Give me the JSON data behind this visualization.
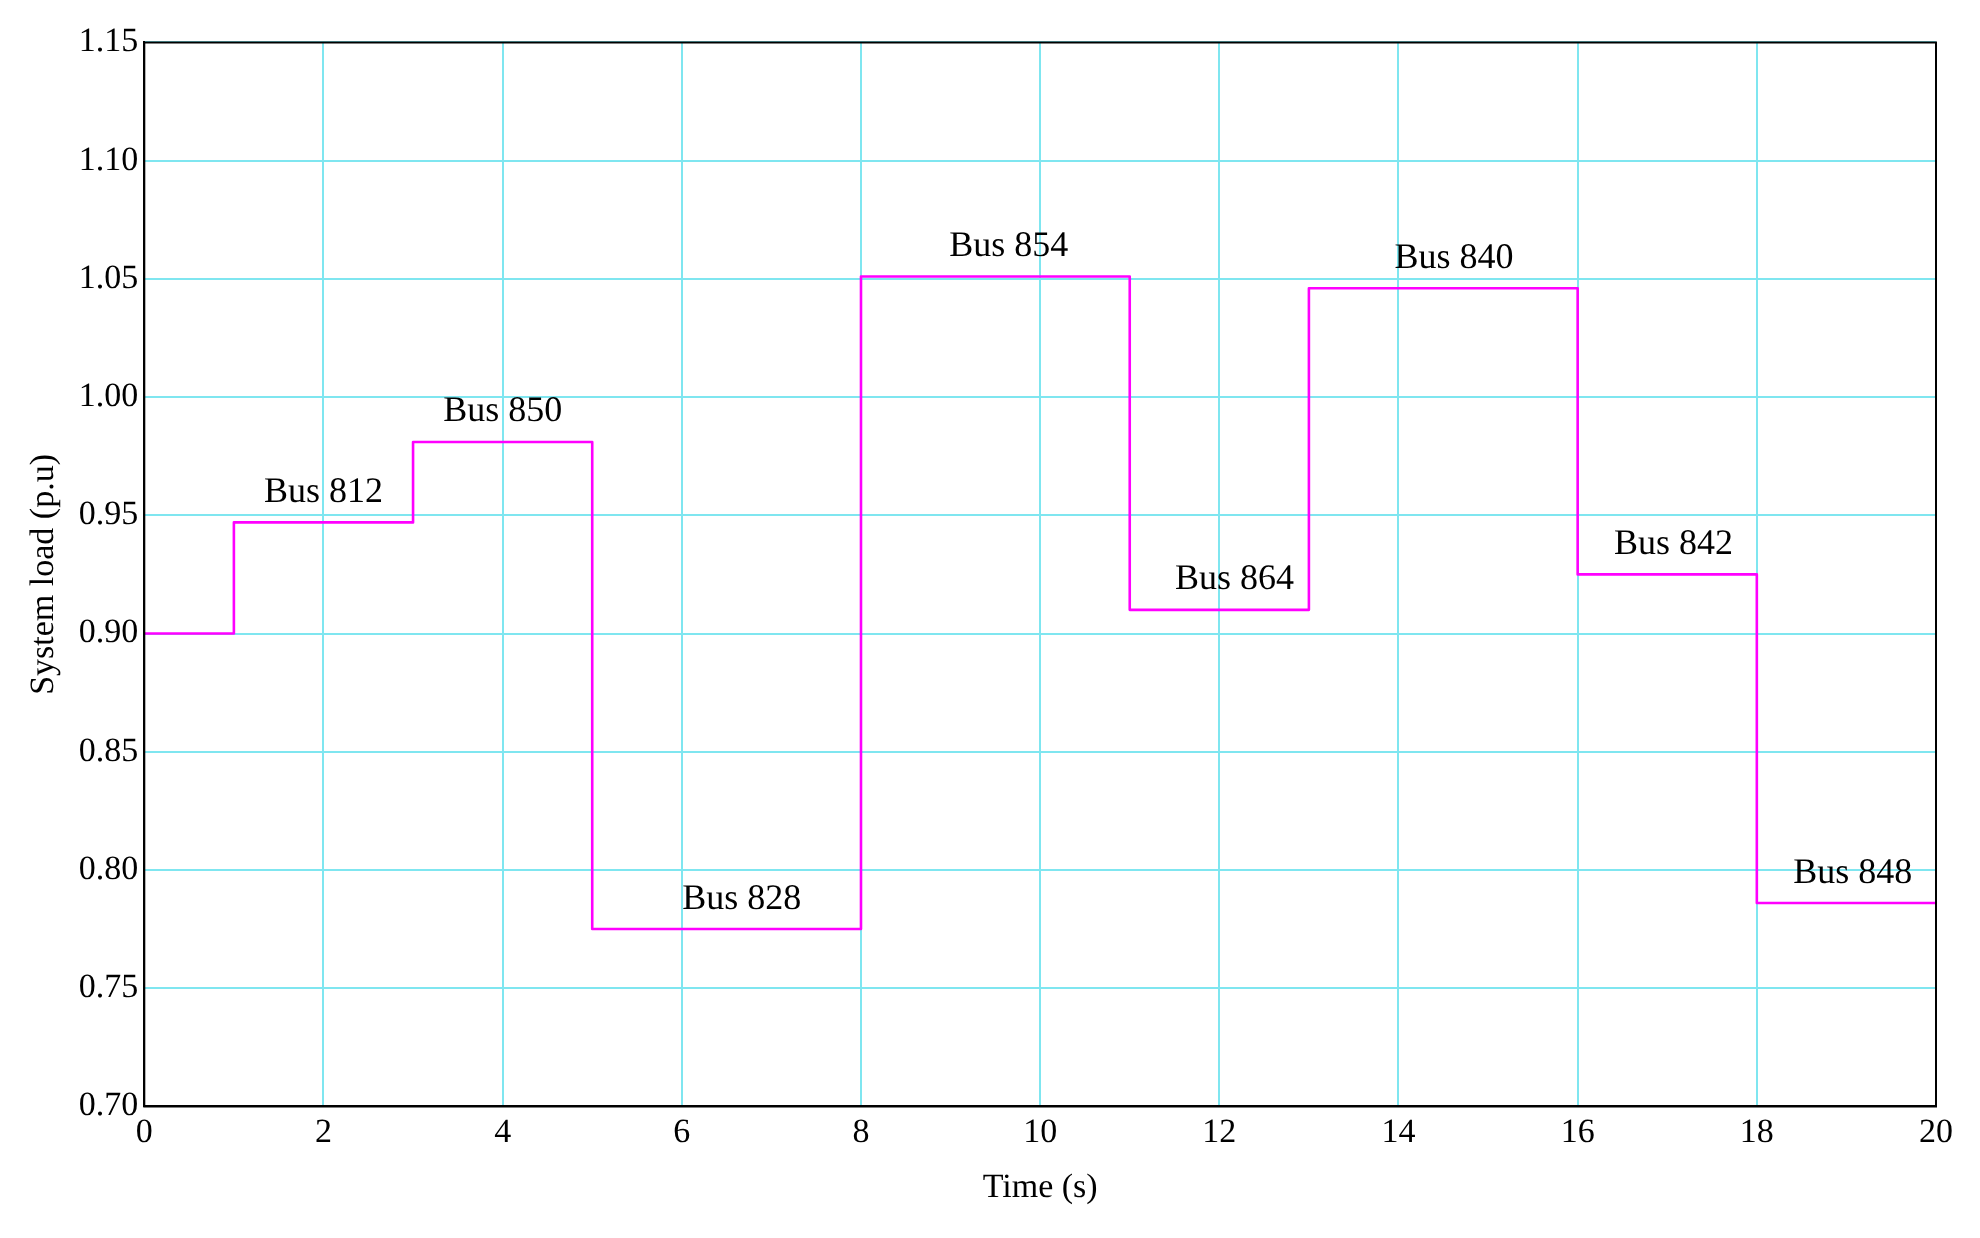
{
  "chart_data": {
    "type": "step",
    "xlabel": "Time (s)",
    "ylabel": "System load (p.u)",
    "x": [
      0,
      1,
      3,
      5,
      8,
      11,
      13,
      16,
      18,
      20
    ],
    "series": [
      {
        "color": "#ff00ff",
        "values": [
          0.9,
          0.947,
          0.981,
          0.775,
          1.051,
          0.91,
          1.046,
          0.925,
          0.786,
          0.786
        ]
      }
    ],
    "xlim": [
      0,
      20
    ],
    "xticks": [
      0,
      2,
      4,
      6,
      8,
      10,
      12,
      14,
      16,
      18,
      20
    ],
    "ylim": [
      0.7,
      1.15
    ],
    "yticks": [
      {
        "value": 0.7,
        "label": "0.70"
      },
      {
        "value": 0.75,
        "label": "0.75"
      },
      {
        "value": 0.8,
        "label": "0.80"
      },
      {
        "value": 0.85,
        "label": "0.85"
      },
      {
        "value": 0.9,
        "label": "0.90"
      },
      {
        "value": 0.95,
        "label": "0.95"
      },
      {
        "value": 1.0,
        "label": "1.00"
      },
      {
        "value": 1.05,
        "label": "1.05"
      },
      {
        "value": 1.1,
        "label": "1.10"
      },
      {
        "value": 1.15,
        "label": "1.15"
      }
    ],
    "grid": true,
    "marker": "none",
    "line_style": "solid",
    "annotations": [
      {
        "text": "Bus 812",
        "x": 2,
        "y": 0.947
      },
      {
        "text": "Bus 850",
        "x": 4,
        "y": 0.981
      },
      {
        "text": "Bus 828",
        "x": 6.67,
        "y": 0.775
      },
      {
        "text": "Bus 854",
        "x": 9.65,
        "y": 1.051
      },
      {
        "text": "Bus 864",
        "x": 12.17,
        "y": 0.91
      },
      {
        "text": "Bus 840",
        "x": 14.62,
        "y": 1.046
      },
      {
        "text": "Bus 842",
        "x": 17.07,
        "y": 0.925
      },
      {
        "text": "Bus 848",
        "x": 19.07,
        "y": 0.786
      }
    ]
  }
}
